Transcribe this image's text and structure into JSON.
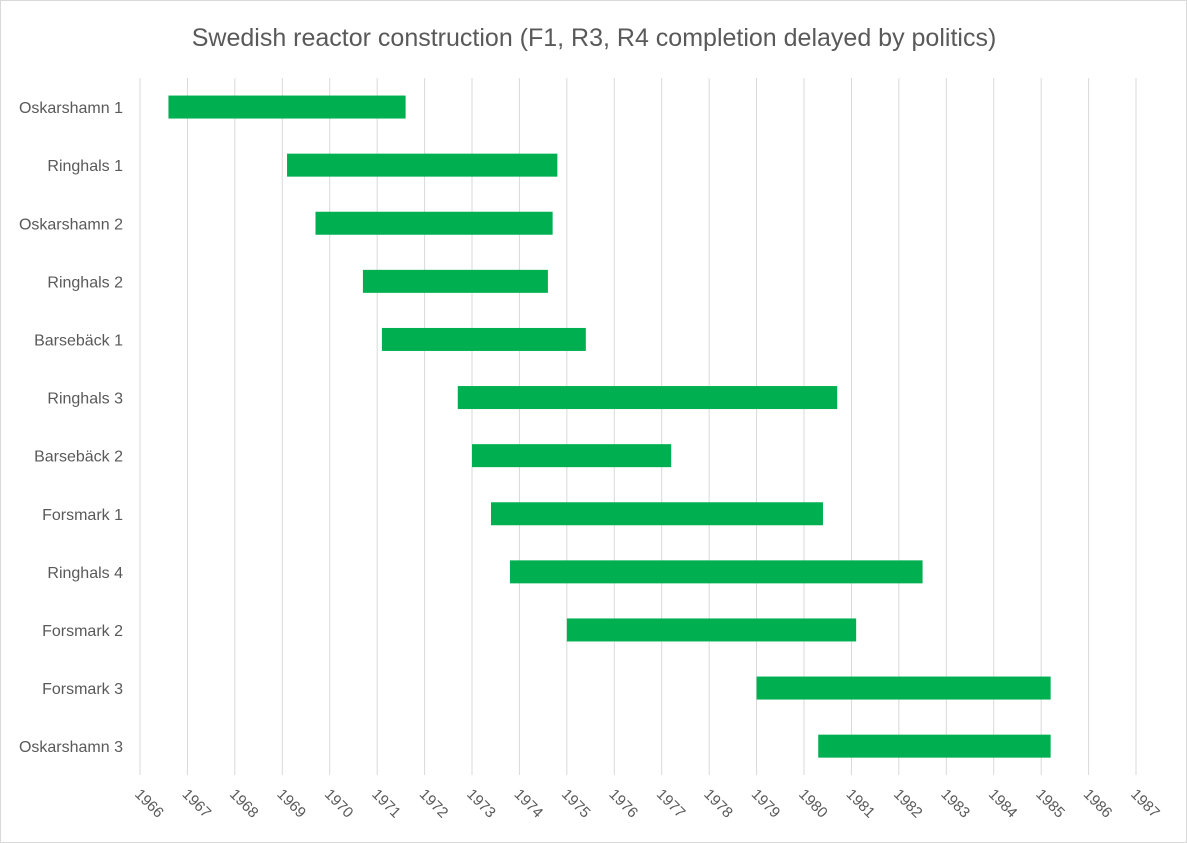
{
  "chart_data": {
    "type": "bar",
    "orientation": "horizontal",
    "title": "Swedish reactor construction (F1, R3, R4 completion delayed by politics)",
    "xlabel": "",
    "ylabel": "",
    "xlim": [
      1966,
      1987
    ],
    "x_ticks": [
      "1966",
      "1967",
      "1968",
      "1969",
      "1970",
      "1971",
      "1972",
      "1973",
      "1974",
      "1975",
      "1976",
      "1977",
      "1978",
      "1979",
      "1980",
      "1981",
      "1982",
      "1983",
      "1984",
      "1985",
      "1986",
      "1987"
    ],
    "grid": true,
    "bar_color": "#00b050",
    "categories": [
      "Oskarshamn 1",
      "Ringhals 1",
      "Oskarshamn 2",
      "Ringhals 2",
      "Barsebäck 1",
      "Ringhals 3",
      "Barsebäck 2",
      "Forsmark 1",
      "Ringhals 4",
      "Forsmark 2",
      "Forsmark 3",
      "Oskarshamn 3"
    ],
    "series": [
      {
        "start": [
          1966.6,
          1969.1,
          1969.7,
          1970.7,
          1971.1,
          1972.7,
          1973.0,
          1973.4,
          1973.8,
          1975.0,
          1979.0,
          1980.3
        ],
        "end": [
          1971.6,
          1974.8,
          1974.7,
          1974.6,
          1975.4,
          1980.7,
          1977.2,
          1980.4,
          1982.5,
          1981.1,
          1985.2,
          1985.2
        ]
      }
    ]
  }
}
